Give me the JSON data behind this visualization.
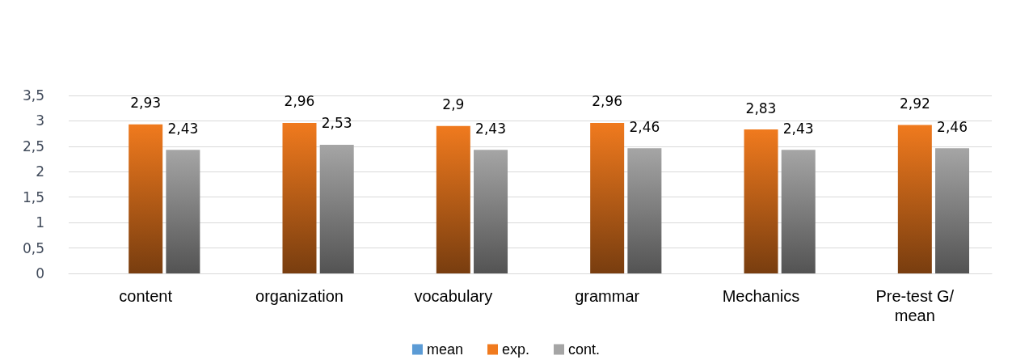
{
  "chart_data": {
    "type": "bar",
    "categories": [
      "content",
      "organization",
      "vocabulary",
      "grammar",
      "Mechanics",
      "Pre-test G/mean"
    ],
    "series": [
      {
        "name": "mean",
        "color": "#5b9bd5",
        "values": [
          null,
          null,
          null,
          null,
          null,
          null
        ]
      },
      {
        "name": "exp.",
        "color": "#f07a1e",
        "values": [
          2.93,
          2.96,
          2.9,
          2.96,
          2.83,
          2.92
        ],
        "value_labels": [
          "2,93",
          "2,96",
          "2,9",
          "2,96",
          "2,83",
          "2,92"
        ]
      },
      {
        "name": "cont.",
        "color": "#a5a5a5",
        "values": [
          2.43,
          2.53,
          2.43,
          2.46,
          2.43,
          2.46
        ],
        "value_labels": [
          "2,43",
          "2,53",
          "2,43",
          "2,46",
          "2,43",
          "2,46"
        ]
      }
    ],
    "ylim": [
      0,
      3.5
    ],
    "yticks": [
      0,
      {
        "value": 0.5,
        "label": "0,5"
      },
      1,
      {
        "value": 1.5,
        "label": "1,5"
      },
      2,
      {
        "value": 2.5,
        "label": "2,5"
      },
      3,
      {
        "value": 3.5,
        "label": "3,5"
      }
    ],
    "grid": "y",
    "legend": "bottom"
  }
}
